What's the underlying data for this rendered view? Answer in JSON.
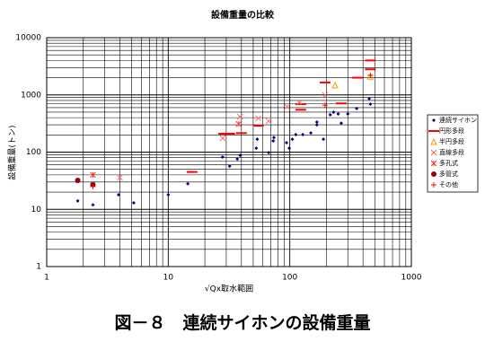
{
  "chart_data": {
    "type": "scatter",
    "title": "設備重量の比較",
    "x_label": "√Qx取水範囲",
    "y_label": "設備重量(トン)",
    "caption": "図－８　連続サイホンの設備重量",
    "log_x": true,
    "log_y": true,
    "grid": true,
    "legend": "right",
    "xlim": [
      1,
      1000
    ],
    "xticks": [
      1,
      10,
      100,
      1000
    ],
    "ylim": [
      1,
      10000
    ],
    "yticks": [
      1,
      10,
      100,
      1000,
      10000
    ],
    "xminorticks": [
      2,
      3,
      4,
      5,
      6,
      7,
      8,
      9,
      20,
      30,
      40,
      50,
      60,
      70,
      80,
      90,
      200,
      300,
      400,
      500,
      600,
      700,
      800,
      900
    ],
    "yminorticks": [
      2,
      3,
      4,
      5,
      6,
      7,
      8,
      9,
      20,
      30,
      40,
      50,
      60,
      70,
      80,
      90,
      200,
      300,
      400,
      500,
      600,
      700,
      800,
      900,
      2000,
      3000,
      4000,
      5000,
      6000,
      7000,
      8000,
      9000
    ],
    "series": [
      {
        "name": "連続サイホン",
        "color": "#000080",
        "marker": "diamond",
        "x": [
          1.8,
          2.4,
          3.9,
          5.2,
          10,
          14.5,
          28,
          32,
          37,
          39,
          53,
          54,
          67,
          73,
          74,
          94,
          99,
          105,
          112,
          128,
          149,
          167,
          167,
          189,
          215,
          229,
          250,
          265,
          300,
          355,
          450,
          460
        ],
        "values": [
          14,
          12,
          18,
          13,
          18,
          28,
          82,
          57,
          76,
          88,
          117,
          168,
          98,
          157,
          180,
          146,
          117,
          168,
          202,
          202,
          216,
          300,
          335,
          168,
          450,
          500,
          465,
          320,
          465,
          580,
          860,
          690
        ]
      },
      {
        "name": "円形多段",
        "color": "#ff0000",
        "marker": "dash",
        "x": [
          15.7,
          28.6,
          32,
          40,
          55,
          123,
          123,
          195,
          265,
          360,
          460,
          460
        ],
        "values": [
          45,
          210,
          210,
          215,
          290,
          690,
          550,
          1650,
          710,
          2000,
          4000,
          2800
        ]
      },
      {
        "name": "半円多段",
        "color": "#ff9900",
        "marker": "triangle",
        "x": [
          236,
          460
        ],
        "values": [
          1480,
          2100
        ]
      },
      {
        "name": "直線多段",
        "color": "#ff6666",
        "marker": "x",
        "x": [
          4,
          28,
          39,
          55,
          67,
          95,
          120,
          195
        ],
        "values": [
          36,
          175,
          415,
          390,
          350,
          620,
          740,
          990
        ]
      },
      {
        "name": "多孔式",
        "color": "#ff3333",
        "marker": "asterisk",
        "x": [
          2.4,
          38
        ],
        "values": [
          40,
          310
        ]
      },
      {
        "name": "多管式",
        "color": "#990000",
        "marker": "circle",
        "x": [
          1.8,
          2.4
        ],
        "values": [
          32,
          27
        ]
      },
      {
        "name": "その他",
        "color": "#ff0000",
        "marker": "plus",
        "x": [
          2.4,
          195,
          460
        ],
        "values": [
          25,
          660,
          2200
        ]
      }
    ]
  }
}
